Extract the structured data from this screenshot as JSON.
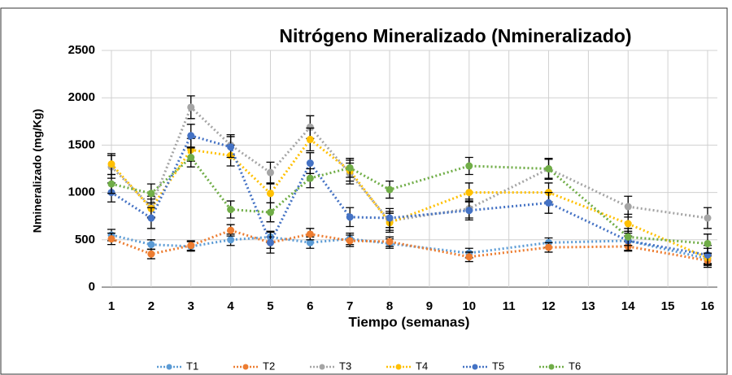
{
  "chart_data": {
    "type": "line",
    "title": "Nitrógeno Mineralizado (Nmineralizado)",
    "xlabel": "Tiempo (semanas)",
    "ylabel": "Nmineralizado  (mg/Kg)",
    "x": [
      1,
      2,
      3,
      4,
      5,
      6,
      7,
      8,
      10,
      12,
      14,
      16
    ],
    "xlim": [
      1,
      16
    ],
    "xticks": [
      1,
      2,
      3,
      4,
      5,
      6,
      7,
      8,
      9,
      10,
      11,
      12,
      13,
      14,
      15,
      16
    ],
    "ylim": [
      0,
      2500
    ],
    "yticks": [
      0,
      500,
      1000,
      1500,
      2000,
      2500
    ],
    "grid": true,
    "legend": "bottom",
    "series": [
      {
        "name": "T1",
        "color": "#5b9bd5",
        "values": [
          550,
          450,
          430,
          500,
          530,
          470,
          510,
          460,
          360,
          470,
          490,
          300
        ],
        "errors": [
          60,
          50,
          50,
          60,
          60,
          60,
          60,
          50,
          50,
          50,
          50,
          50
        ]
      },
      {
        "name": "T2",
        "color": "#ed7d31",
        "values": [
          510,
          350,
          440,
          600,
          470,
          560,
          490,
          480,
          320,
          420,
          430,
          280
        ],
        "errors": [
          60,
          50,
          50,
          60,
          60,
          60,
          60,
          50,
          50,
          50,
          50,
          50
        ]
      },
      {
        "name": "T3",
        "color": "#a5a5a5",
        "values": [
          1270,
          850,
          1900,
          1500,
          1210,
          1690,
          1200,
          700,
          830,
          1250,
          850,
          730
        ],
        "errors": [
          120,
          110,
          120,
          110,
          110,
          120,
          110,
          100,
          100,
          110,
          110,
          110
        ]
      },
      {
        "name": "T4",
        "color": "#ffc000",
        "values": [
          1300,
          830,
          1450,
          1390,
          990,
          1560,
          1230,
          680,
          1000,
          1000,
          670,
          310
        ],
        "errors": [
          110,
          100,
          120,
          110,
          100,
          120,
          110,
          100,
          100,
          100,
          100,
          100
        ]
      },
      {
        "name": "T5",
        "color": "#4472c4",
        "values": [
          1000,
          730,
          1600,
          1480,
          470,
          1310,
          740,
          730,
          810,
          890,
          490,
          340
        ],
        "errors": [
          100,
          110,
          120,
          110,
          110,
          110,
          100,
          100,
          100,
          110,
          100,
          100
        ]
      },
      {
        "name": "T6",
        "color": "#70ad47",
        "values": [
          1090,
          990,
          1370,
          820,
          790,
          1150,
          1260,
          1030,
          1280,
          1250,
          530,
          460
        ],
        "errors": [
          100,
          100,
          100,
          90,
          100,
          100,
          100,
          90,
          90,
          100,
          90,
          100
        ]
      }
    ]
  }
}
